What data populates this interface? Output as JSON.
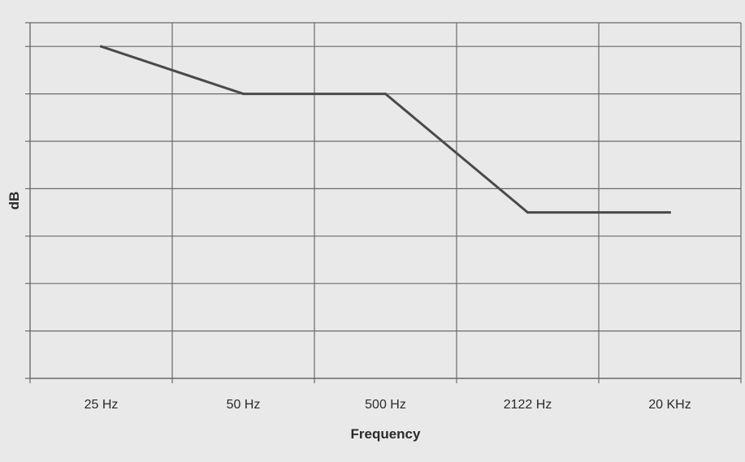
{
  "chart_data": {
    "type": "line",
    "title": "",
    "xlabel": "Frequency",
    "ylabel": "dB",
    "categories": [
      "25 Hz",
      "50 Hz",
      "500 Hz",
      "2122 Hz",
      "20 KHz"
    ],
    "series": [
      {
        "values": [
          6,
          5,
          5,
          2.5,
          2.5
        ]
      }
    ],
    "ylim": [
      -1,
      6.5
    ],
    "ytick_step": 1,
    "grid": true,
    "legend": "none",
    "colors": {
      "background": "#e9e9e9",
      "grid": "#6a6a6a",
      "line": "#4a4a4a",
      "text": "#2a2a2a"
    }
  }
}
